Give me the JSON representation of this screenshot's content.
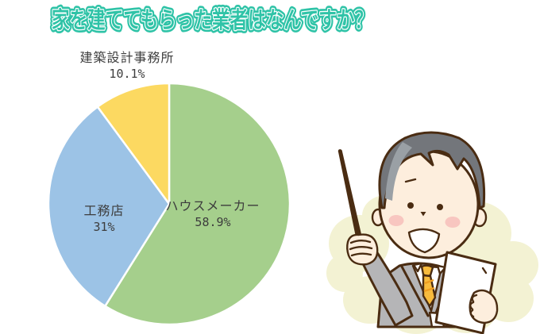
{
  "title": {
    "text": "家を建ててもらった業者はなんですか？",
    "color": "#2fc3a7"
  },
  "chart_data": {
    "type": "pie",
    "title": "家を建ててもらった業者はなんですか？",
    "direction": "clockwise",
    "start_angle_deg": 0,
    "slice_gap_color": "#ffffff",
    "label_color": "#3d3d3d",
    "slices": [
      {
        "label": "ハウスメーカー",
        "value": 58.9,
        "pct_label": "58.9%",
        "color": "#a5cf8c",
        "label_placement": "inside-right"
      },
      {
        "label": "工務店",
        "value": 31,
        "pct_label": "31%",
        "color": "#9cc3e6",
        "label_placement": "inside-left"
      },
      {
        "label": "建築設計事務所",
        "value": 10.1,
        "pct_label": "10.1%",
        "color": "#fcd961",
        "label_placement": "outside-top-left"
      }
    ]
  },
  "illustration": {
    "description": "smiling businessman in gray suit holding a pointer stick and a white document",
    "colors": {
      "outline": "#4a2c12",
      "skin": "#fdeedd",
      "cheek": "#f8c6c0",
      "hair": "#73767b",
      "hair_highlight": "#9aa0a5",
      "suit": "#b5b5b7",
      "tie": "#f8bb3d",
      "tie_stripe": "#ef9d20",
      "paper": "#ffffff",
      "background_blob": "#f3f2d3"
    }
  }
}
